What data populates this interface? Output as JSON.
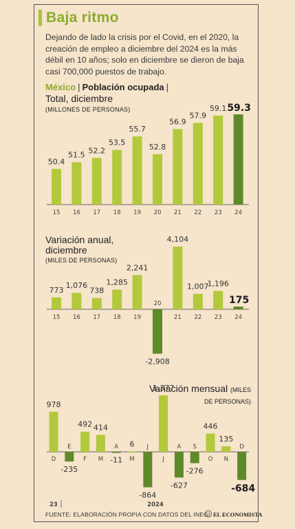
{
  "title": "Baja ritmo",
  "subtitle": "Dejando de lado la crisis por el Covid, en el 2020, la creación de empleo a diciembre del 2024 es la más débil en 10 años; solo en diciembre se dieron de baja casi 700,000 puestos de trabajo.",
  "tabs": {
    "country": "México",
    "sep1": "|",
    "indicator": "Población ocupada",
    "sep2": "|"
  },
  "source": "FUENTE: ELABORACIÓN PROPIA CON DATOS DEL INEGI",
  "brand": "EL ECONOMISTA",
  "colors": {
    "light": "#b3c93c",
    "dark": "#5f8a2a",
    "axis": "#666666",
    "background": "#f6e4cb",
    "title": "#8bab2c"
  },
  "chart_data": [
    {
      "type": "bar",
      "title": "Total, diciembre",
      "unit_label": "(MILLONES DE PERSONAS)",
      "categories": [
        "15",
        "16",
        "17",
        "18",
        "19",
        "20",
        "21",
        "22",
        "23",
        "24"
      ],
      "values": [
        50.4,
        51.5,
        52.2,
        53.5,
        55.7,
        52.8,
        56.9,
        57.9,
        59.1,
        59.3
      ],
      "labels": [
        "50.4",
        "51.5",
        "52.2",
        "53.5",
        "55.7",
        "52.8",
        "56.9",
        "57.9",
        "59.1",
        "59.3"
      ],
      "highlight_index": 9,
      "ylim": [
        44.6,
        59.3
      ]
    },
    {
      "type": "bar",
      "title": "Variación anual, diciembre",
      "unit_label": "(MILES DE PERSONAS)",
      "categories": [
        "15",
        "16",
        "17",
        "18",
        "19",
        "20",
        "21",
        "22",
        "23",
        "24"
      ],
      "values": [
        773,
        1076,
        738,
        1285,
        2241,
        -2908,
        4104,
        1007,
        1196,
        175
      ],
      "labels": [
        "773",
        "1,076",
        "738",
        "1,285",
        "2,241",
        "-2,908",
        "4,104",
        "1,007",
        "1,196",
        "175"
      ],
      "highlight_index": 9,
      "ylim": [
        -2908,
        4104
      ]
    },
    {
      "type": "bar",
      "title": "Variación mensual",
      "unit_label": "(MILES DE PERSONAS)",
      "categories": [
        "D",
        "E",
        "F",
        "M",
        "A",
        "M",
        "J",
        "J",
        "A",
        "S",
        "O",
        "N",
        "D"
      ],
      "values": [
        978,
        -235,
        492,
        414,
        -11,
        6,
        -864,
        1377,
        -627,
        -276,
        446,
        135,
        -684
      ],
      "labels": [
        "978",
        "-235",
        "492",
        "414",
        "-11",
        "6",
        "-864",
        "1,377",
        "-627",
        "-276",
        "446",
        "135",
        "-684"
      ],
      "highlight_index": 12,
      "year_labels": [
        "23",
        "2024"
      ],
      "ylim": [
        -864,
        1377
      ]
    }
  ]
}
